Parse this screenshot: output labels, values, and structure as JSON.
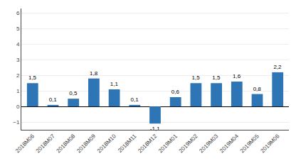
{
  "chart_data": {
    "type": "bar",
    "categories": [
      "2018M06",
      "2018M07",
      "2018M08",
      "2018M09",
      "2018M10",
      "2018M11",
      "2018M12",
      "2019M01",
      "2019M02",
      "2019M03",
      "2019M04",
      "2019M05",
      "2019M06"
    ],
    "values": [
      1.5,
      0.1,
      0.5,
      1.8,
      1.1,
      0.1,
      -1.1,
      0.6,
      1.5,
      1.5,
      1.6,
      0.8,
      2.2
    ],
    "value_labels": [
      "1,5",
      "0,1",
      "0,5",
      "1,8",
      "1,1",
      "0,1",
      "-1,1",
      "0,6",
      "1,5",
      "1,5",
      "1,6",
      "0,8",
      "2,2"
    ],
    "data_labels": true,
    "color": "#2e75b6",
    "ylim": [
      -1.5,
      6.3
    ],
    "yticks": [
      -1,
      0,
      1,
      2,
      3,
      4,
      5,
      6
    ],
    "grid": true
  }
}
